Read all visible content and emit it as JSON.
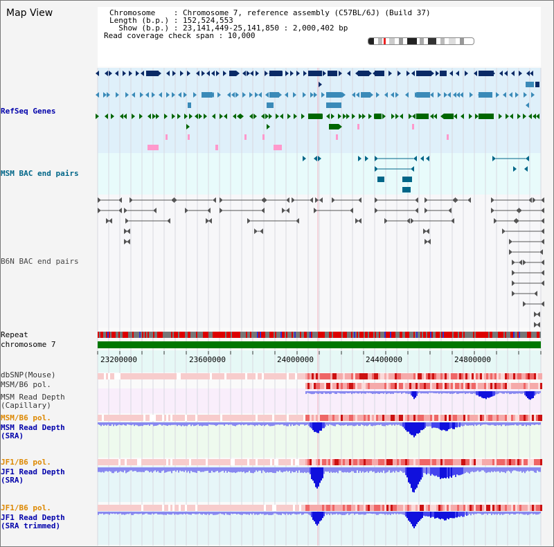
{
  "title": "Map View",
  "info": {
    "lines": [
      "Chromosome    : Chromosome 7, reference assembly (C57BL/6J) (Build 37)",
      "Length (b.p.) : 152,524,553",
      "  Show (b.p.) : 23,141,449-25,141,850 : 2,000,402 bp",
      "Read coverage check span : 10,000"
    ]
  },
  "tracks": [
    {
      "label": "RefSeq Genes",
      "color": "#0000aa"
    },
    {
      "label": "MSM BAC end pairs",
      "color": "#006688"
    },
    {
      "label": "B6N BAC end pairs",
      "color": "#444444"
    },
    {
      "label": "Repeat",
      "color": "#000000"
    },
    {
      "label": "chromosome 7",
      "color": "#000000"
    },
    {
      "label": "dbSNP(Mouse)",
      "color": "#333333"
    },
    {
      "label": "MSM/B6 pol.",
      "color": "#333333"
    },
    {
      "label": "MSM Read Depth\n(Capillary)",
      "color": "#333333"
    },
    {
      "label": "MSM/B6 pol.",
      "color": "#dd8800"
    },
    {
      "label": "MSM Read Depth\n(SRA)",
      "color": "#0000aa"
    },
    {
      "label": "JF1/B6 pol.",
      "color": "#dd8800"
    },
    {
      "label": "JF1 Read Depth\n(SRA)",
      "color": "#0000aa"
    },
    {
      "label": "JF1/B6 pol.",
      "color": "#dd8800"
    },
    {
      "label": "JF1 Read Depth\n(SRA trimmed)",
      "color": "#0000aa"
    }
  ],
  "axis": {
    "ticks": [
      "23200000",
      "23600000",
      "24000000",
      "24400000",
      "24800000"
    ]
  },
  "colors": {
    "gene_dark": "#0a2a66",
    "gene_mid": "#3a8ab8",
    "gene_green": "#006600",
    "gene_pink": "#ff99cc",
    "msm_bac": "#006688",
    "b6n_bac": "#555555",
    "repeat_red": "#dd0000",
    "repeat_gray": "#777777",
    "chromosome": "#007700",
    "depth_blue": "#3333ee",
    "pol_red": "#dd2222"
  }
}
